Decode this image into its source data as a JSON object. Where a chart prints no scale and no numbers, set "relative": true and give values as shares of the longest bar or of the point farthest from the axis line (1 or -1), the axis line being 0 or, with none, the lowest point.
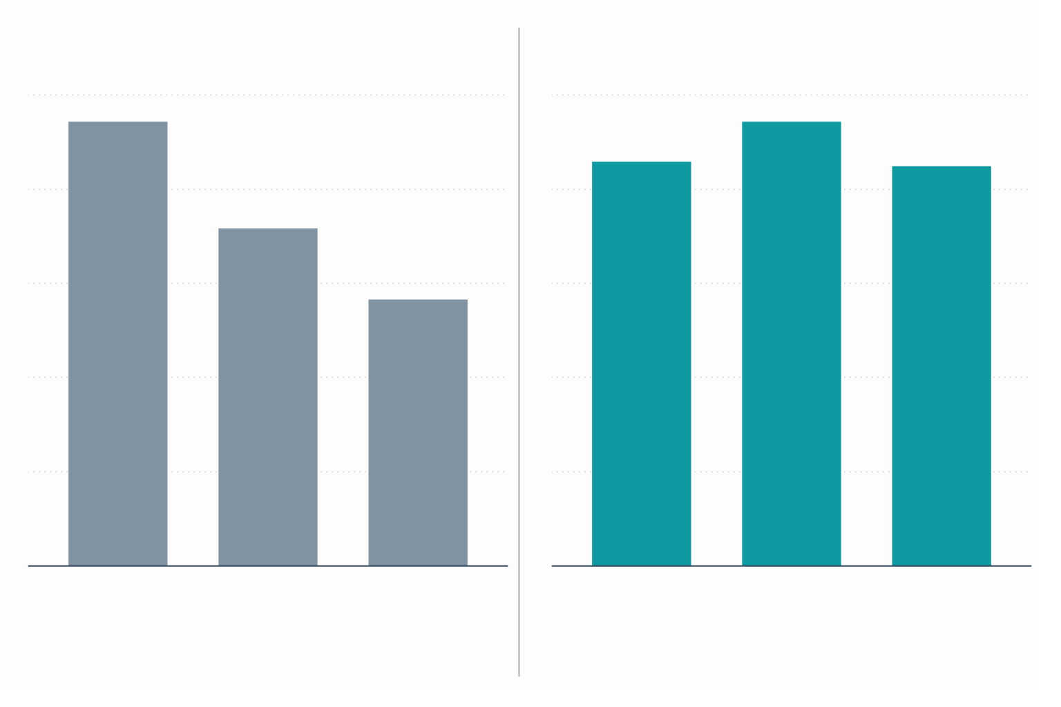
{
  "chart_data": [
    {
      "type": "bar",
      "relative": true,
      "categories": [
        null,
        null,
        null
      ],
      "values": [
        1,
        0.76,
        0.6
      ],
      "color": "#7f93a3",
      "grid": true
    },
    {
      "type": "bar",
      "relative": true,
      "categories": [
        null,
        null,
        null
      ],
      "values": [
        0.91,
        1,
        0.9
      ],
      "color": "#0e9aa0",
      "grid": true
    }
  ]
}
